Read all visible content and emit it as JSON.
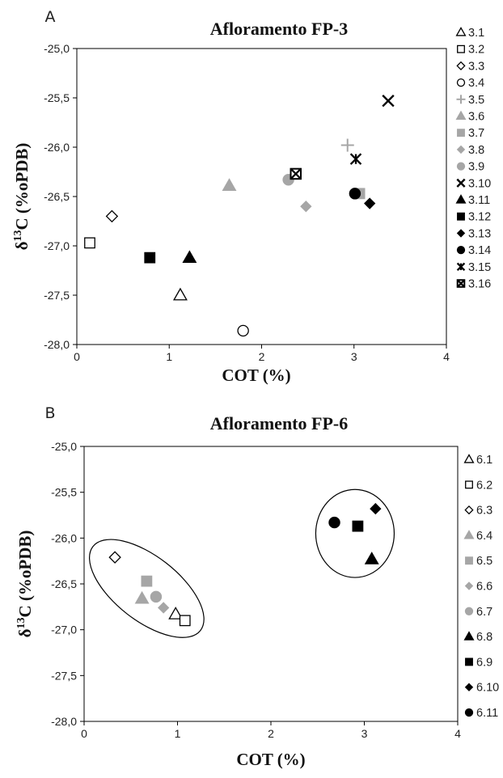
{
  "chart_data": [
    {
      "type": "scatter",
      "panel": "A",
      "title": "Afloramento FP-3",
      "xlabel": "COT (%)",
      "ylabel": "δ13C (‰PDB)",
      "ylabel_parts": [
        "δ",
        "13",
        "C (%oPDB)"
      ],
      "xlim": [
        0,
        4
      ],
      "ylim": [
        -28.0,
        -25.0
      ],
      "x_ticks": [
        0,
        1,
        2,
        3,
        4
      ],
      "x_tick_labels": [
        "0",
        "1",
        "2",
        "3",
        "4"
      ],
      "y_ticks": [
        -25.0,
        -25.5,
        -26.0,
        -26.5,
        -27.0,
        -27.5,
        -28.0
      ],
      "y_tick_labels": [
        "-25,0",
        "-25,5",
        "-26,0",
        "-26,5",
        "-27,0",
        "-27,5",
        "-28,0"
      ],
      "grid": false,
      "legend_position": "right",
      "series": [
        {
          "name": "3.1",
          "marker": "triangle-open",
          "color": "#000000",
          "x": 1.12,
          "y": -27.5
        },
        {
          "name": "3.2",
          "marker": "square-open",
          "color": "#000000",
          "x": 0.14,
          "y": -26.97
        },
        {
          "name": "3.3",
          "marker": "diamond-open",
          "color": "#000000",
          "x": 0.38,
          "y": -26.7
        },
        {
          "name": "3.4",
          "marker": "circle-open",
          "color": "#000000",
          "x": 1.8,
          "y": -27.86
        },
        {
          "name": "3.5",
          "marker": "plus",
          "color": "#a6a6a6",
          "x": 2.93,
          "y": -25.98
        },
        {
          "name": "3.6",
          "marker": "triangle",
          "color": "#a6a6a6",
          "x": 1.65,
          "y": -26.39
        },
        {
          "name": "3.7",
          "marker": "square",
          "color": "#a6a6a6",
          "x": 3.06,
          "y": -26.47
        },
        {
          "name": "3.8",
          "marker": "diamond",
          "color": "#a6a6a6",
          "x": 2.48,
          "y": -26.6
        },
        {
          "name": "3.9",
          "marker": "circle",
          "color": "#a6a6a6",
          "x": 2.29,
          "y": -26.33
        },
        {
          "name": "3.10",
          "marker": "x",
          "color": "#000000",
          "x": 3.37,
          "y": -25.53
        },
        {
          "name": "3.11",
          "marker": "triangle",
          "color": "#000000",
          "x": 1.22,
          "y": -27.12
        },
        {
          "name": "3.12",
          "marker": "square",
          "color": "#000000",
          "x": 0.79,
          "y": -27.12
        },
        {
          "name": "3.13",
          "marker": "diamond",
          "color": "#000000",
          "x": 3.17,
          "y": -26.57
        },
        {
          "name": "3.14",
          "marker": "circle",
          "color": "#000000",
          "x": 3.01,
          "y": -26.47
        },
        {
          "name": "3.15",
          "marker": "asterisk",
          "color": "#000000",
          "x": 3.02,
          "y": -26.12
        },
        {
          "name": "3.16",
          "marker": "square-x",
          "color": "#000000",
          "x": 2.37,
          "y": -26.27
        }
      ]
    },
    {
      "type": "scatter",
      "panel": "B",
      "title": "Afloramento FP-6",
      "xlabel": "COT (%)",
      "ylabel": "δ13C (‰PDB)",
      "ylabel_parts": [
        "δ",
        "13",
        "C (%oPDB)"
      ],
      "xlim": [
        0,
        4
      ],
      "ylim": [
        -28.0,
        -25.0
      ],
      "x_ticks": [
        0,
        1,
        2,
        3,
        4
      ],
      "x_tick_labels": [
        "0",
        "1",
        "2",
        "3",
        "4"
      ],
      "y_ticks": [
        -25.0,
        -25.5,
        -26.0,
        -26.5,
        -27.0,
        -27.5,
        -28.0
      ],
      "y_tick_labels": [
        "-25,0",
        "-25,5",
        "-26,0",
        "-26,5",
        "-27,0",
        "-27,5",
        "-28,0"
      ],
      "grid": false,
      "legend_position": "right",
      "annotations": [
        {
          "type": "ellipse",
          "cx": 0.67,
          "cy": -26.55,
          "rx": 0.73,
          "ry": 0.35,
          "angle_deg": 38
        },
        {
          "type": "ellipse",
          "cx": 2.9,
          "cy": -25.95,
          "rx": 0.42,
          "ry": 0.48,
          "angle_deg": 0
        }
      ],
      "series": [
        {
          "name": "6.1",
          "marker": "triangle-open",
          "color": "#000000",
          "x": 0.98,
          "y": -26.83
        },
        {
          "name": "6.2",
          "marker": "square-open",
          "color": "#000000",
          "x": 1.08,
          "y": -26.9
        },
        {
          "name": "6.3",
          "marker": "diamond-open",
          "color": "#000000",
          "x": 0.33,
          "y": -26.21
        },
        {
          "name": "6.4",
          "marker": "triangle",
          "color": "#a6a6a6",
          "x": 0.62,
          "y": -26.66
        },
        {
          "name": "6.5",
          "marker": "square",
          "color": "#a6a6a6",
          "x": 0.67,
          "y": -26.47
        },
        {
          "name": "6.6",
          "marker": "diamond",
          "color": "#a6a6a6",
          "x": 0.85,
          "y": -26.76
        },
        {
          "name": "6.7",
          "marker": "circle",
          "color": "#a6a6a6",
          "x": 0.77,
          "y": -26.64
        },
        {
          "name": "6.8",
          "marker": "triangle",
          "color": "#000000",
          "x": 3.08,
          "y": -26.23
        },
        {
          "name": "6.9",
          "marker": "square",
          "color": "#000000",
          "x": 2.93,
          "y": -25.87
        },
        {
          "name": "6.10",
          "marker": "diamond",
          "color": "#000000",
          "x": 3.12,
          "y": -25.68
        },
        {
          "name": "6.11",
          "marker": "circle",
          "color": "#000000",
          "x": 2.68,
          "y": -25.83
        }
      ]
    }
  ]
}
